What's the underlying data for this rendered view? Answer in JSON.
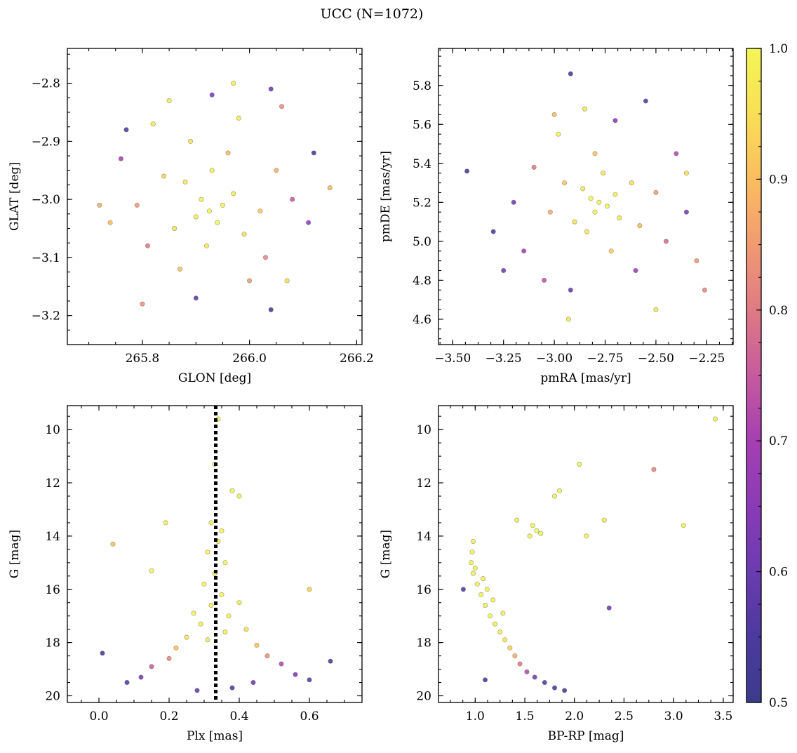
{
  "figure": {
    "title": "UCC (N=1072)",
    "colormap": "plasma",
    "cmap_colors": [
      "#3b3c8c",
      "#4c3a9e",
      "#6a3bb0",
      "#8a3bb6",
      "#a53fb2",
      "#c65a9e",
      "#df7a84",
      "#f19a72",
      "#fbbd5e",
      "#f9df55",
      "#f3f555"
    ],
    "colorbar": {
      "min": 0.5,
      "max": 1.0,
      "ticks": [
        0.5,
        0.6,
        0.7,
        0.8,
        0.9,
        1.0
      ],
      "tick_labels": [
        "0.5",
        "0.6",
        "0.7",
        "0.8",
        "0.9",
        "1.0"
      ]
    }
  },
  "chart_data": [
    {
      "id": "glon-glat",
      "type": "scatter",
      "xlabel": "GLON [deg]",
      "ylabel": "GLAT [deg]",
      "xlim": [
        265.66,
        266.21
      ],
      "ylim": [
        -3.25,
        -2.74
      ],
      "xticks": [
        265.8,
        266.0,
        266.2
      ],
      "xtick_labels": [
        "265.8",
        "266.0",
        "266.2"
      ],
      "yticks": [
        -2.8,
        -2.9,
        -3.0,
        -3.1,
        -3.2
      ],
      "ytick_labels": [
        "−2.8",
        "−2.9",
        "−3.0",
        "−3.1",
        "−3.2"
      ],
      "y_inverted": false,
      "points": [
        [
          265.925,
          -3.02,
          1.0
        ],
        [
          265.91,
          -3.0,
          1.0
        ],
        [
          265.94,
          -3.04,
          1.0
        ],
        [
          265.9,
          -3.03,
          0.98
        ],
        [
          265.95,
          -3.01,
          1.0
        ],
        [
          265.88,
          -2.97,
          0.97
        ],
        [
          265.97,
          -2.99,
          0.98
        ],
        [
          265.93,
          -2.95,
          0.99
        ],
        [
          265.86,
          -3.05,
          0.96
        ],
        [
          265.99,
          -3.06,
          0.95
        ],
        [
          265.92,
          -3.08,
          0.97
        ],
        [
          265.84,
          -2.96,
          0.93
        ],
        [
          266.02,
          -3.02,
          0.92
        ],
        [
          265.96,
          -2.92,
          0.9
        ],
        [
          265.89,
          -2.9,
          0.96
        ],
        [
          265.79,
          -3.01,
          0.85
        ],
        [
          266.05,
          -2.95,
          0.88
        ],
        [
          265.81,
          -3.08,
          0.8
        ],
        [
          266.03,
          -3.1,
          0.82
        ],
        [
          265.87,
          -3.12,
          0.91
        ],
        [
          265.98,
          -2.86,
          0.98
        ],
        [
          265.76,
          -2.93,
          0.7
        ],
        [
          266.08,
          -3.0,
          0.75
        ],
        [
          265.82,
          -2.87,
          0.97
        ],
        [
          266.0,
          -3.14,
          0.86
        ],
        [
          265.93,
          -2.82,
          0.62
        ],
        [
          266.04,
          -2.81,
          0.6
        ],
        [
          265.74,
          -3.04,
          0.9
        ],
        [
          266.11,
          -3.04,
          0.66
        ],
        [
          265.9,
          -3.17,
          0.58
        ],
        [
          265.8,
          -3.18,
          0.84
        ],
        [
          266.07,
          -3.14,
          0.95
        ],
        [
          265.77,
          -2.88,
          0.55
        ],
        [
          266.12,
          -2.92,
          0.53
        ],
        [
          266.04,
          -3.19,
          0.52
        ],
        [
          265.72,
          -3.01,
          0.88
        ],
        [
          266.15,
          -2.98,
          0.9
        ],
        [
          265.85,
          -2.83,
          0.99
        ],
        [
          265.97,
          -2.8,
          0.99
        ],
        [
          266.06,
          -2.84,
          0.83
        ]
      ]
    },
    {
      "id": "pmra-pmde",
      "type": "scatter",
      "xlabel": "pmRA [mas/yr]",
      "ylabel": "pmDE [mas/yr]",
      "xlim": [
        -3.57,
        -2.12
      ],
      "ylim": [
        4.47,
        5.99
      ],
      "xticks": [
        -3.5,
        -3.25,
        -3.0,
        -2.75,
        -2.5,
        -2.25
      ],
      "xtick_labels": [
        "−3.50",
        "−3.25",
        "−3.00",
        "−2.75",
        "−2.50",
        "−2.25"
      ],
      "yticks": [
        4.6,
        4.8,
        5.0,
        5.2,
        5.4,
        5.6,
        5.8
      ],
      "ytick_labels": [
        "4.6",
        "4.8",
        "5.0",
        "5.2",
        "5.4",
        "5.6",
        "5.8"
      ],
      "y_inverted": false,
      "points": [
        [
          -2.78,
          5.2,
          1.0
        ],
        [
          -2.74,
          5.18,
          1.0
        ],
        [
          -2.82,
          5.22,
          1.0
        ],
        [
          -2.7,
          5.24,
          0.99
        ],
        [
          -2.8,
          5.15,
          1.0
        ],
        [
          -2.86,
          5.27,
          0.98
        ],
        [
          -2.68,
          5.12,
          0.98
        ],
        [
          -2.9,
          5.1,
          0.96
        ],
        [
          -2.62,
          5.3,
          0.95
        ],
        [
          -2.76,
          5.35,
          0.97
        ],
        [
          -2.84,
          5.05,
          0.97
        ],
        [
          -2.95,
          5.3,
          0.92
        ],
        [
          -2.58,
          5.08,
          0.9
        ],
        [
          -3.02,
          5.15,
          0.88
        ],
        [
          -2.5,
          5.25,
          0.86
        ],
        [
          -2.72,
          4.95,
          0.93
        ],
        [
          -2.8,
          5.45,
          0.91
        ],
        [
          -3.1,
          5.38,
          0.8
        ],
        [
          -2.45,
          5.0,
          0.78
        ],
        [
          -3.15,
          4.95,
          0.7
        ],
        [
          -2.4,
          5.45,
          0.72
        ],
        [
          -2.98,
          5.55,
          0.99
        ],
        [
          -2.6,
          4.85,
          0.68
        ],
        [
          -3.2,
          5.2,
          0.6
        ],
        [
          -2.35,
          5.15,
          0.62
        ],
        [
          -2.92,
          4.75,
          0.58
        ],
        [
          -2.7,
          5.62,
          0.64
        ],
        [
          -3.3,
          5.05,
          0.55
        ],
        [
          -2.3,
          4.9,
          0.85
        ],
        [
          -3.43,
          5.36,
          0.52
        ],
        [
          -2.92,
          5.86,
          0.53
        ],
        [
          -2.55,
          5.72,
          0.57
        ],
        [
          -2.26,
          4.75,
          0.82
        ],
        [
          -2.93,
          4.6,
          0.97
        ],
        [
          -3.0,
          5.65,
          0.9
        ],
        [
          -2.5,
          4.65,
          0.98
        ],
        [
          -3.25,
          4.85,
          0.6
        ],
        [
          -2.35,
          5.35,
          0.95
        ],
        [
          -2.85,
          5.68,
          0.98
        ],
        [
          -3.05,
          4.8,
          0.74
        ]
      ]
    },
    {
      "id": "plx-g",
      "type": "scatter",
      "xlabel": "Plx [mas]",
      "ylabel": "G [mag]",
      "xlim": [
        -0.09,
        0.75
      ],
      "ylim": [
        20.25,
        9.1
      ],
      "xticks": [
        0.0,
        0.2,
        0.4,
        0.6
      ],
      "xtick_labels": [
        "0.0",
        "0.2",
        "0.4",
        "0.6"
      ],
      "yticks": [
        10,
        12,
        14,
        16,
        18,
        20
      ],
      "ytick_labels": [
        "10",
        "12",
        "14",
        "16",
        "18",
        "20"
      ],
      "y_inverted": true,
      "vline": 0.333,
      "points": [
        [
          0.34,
          9.6,
          1.0
        ],
        [
          0.33,
          11.3,
          1.0
        ],
        [
          0.4,
          12.5,
          1.0
        ],
        [
          0.38,
          12.3,
          1.0
        ],
        [
          0.32,
          13.5,
          1.0
        ],
        [
          0.35,
          13.8,
          1.0
        ],
        [
          0.34,
          14.2,
          1.0
        ],
        [
          0.31,
          14.6,
          1.0
        ],
        [
          0.36,
          15.0,
          1.0
        ],
        [
          0.33,
          15.4,
          1.0
        ],
        [
          0.3,
          15.8,
          1.0
        ],
        [
          0.35,
          16.2,
          1.0
        ],
        [
          0.32,
          16.6,
          1.0
        ],
        [
          0.37,
          17.0,
          1.0
        ],
        [
          0.29,
          17.3,
          1.0
        ],
        [
          0.36,
          17.6,
          0.99
        ],
        [
          0.31,
          17.9,
          0.98
        ],
        [
          0.27,
          16.9,
          1.0
        ],
        [
          0.4,
          16.5,
          0.99
        ],
        [
          0.25,
          17.8,
          0.97
        ],
        [
          0.42,
          17.5,
          0.96
        ],
        [
          0.22,
          18.2,
          0.9
        ],
        [
          0.45,
          18.1,
          0.92
        ],
        [
          0.2,
          18.6,
          0.82
        ],
        [
          0.48,
          18.5,
          0.84
        ],
        [
          0.15,
          18.9,
          0.75
        ],
        [
          0.52,
          18.8,
          0.72
        ],
        [
          0.12,
          19.3,
          0.62
        ],
        [
          0.56,
          19.2,
          0.63
        ],
        [
          0.08,
          19.5,
          0.55
        ],
        [
          0.6,
          19.4,
          0.56
        ],
        [
          0.04,
          14.3,
          0.9
        ],
        [
          0.19,
          13.5,
          1.0
        ],
        [
          0.6,
          16.0,
          0.93
        ],
        [
          0.15,
          15.3,
          1.0
        ],
        [
          0.28,
          19.8,
          0.58
        ],
        [
          0.38,
          19.7,
          0.55
        ],
        [
          0.66,
          18.7,
          0.54
        ],
        [
          0.01,
          18.4,
          0.53
        ],
        [
          0.44,
          19.5,
          0.6
        ]
      ]
    },
    {
      "id": "bprp-g",
      "type": "scatter",
      "xlabel": "BP-RP [mag]",
      "ylabel": "G [mag]",
      "xlim": [
        0.63,
        3.6
      ],
      "ylim": [
        20.25,
        9.1
      ],
      "xticks": [
        1.0,
        1.5,
        2.0,
        2.5,
        3.0,
        3.5
      ],
      "xtick_labels": [
        "1.0",
        "1.5",
        "2.0",
        "2.5",
        "3.0",
        "3.5"
      ],
      "yticks": [
        10,
        12,
        14,
        16,
        18,
        20
      ],
      "ytick_labels": [
        "10",
        "12",
        "14",
        "16",
        "18",
        "20"
      ],
      "y_inverted": true,
      "points": [
        [
          0.98,
          14.2,
          1.0
        ],
        [
          0.97,
          14.6,
          1.0
        ],
        [
          0.96,
          15.0,
          1.0
        ],
        [
          0.98,
          15.4,
          1.0
        ],
        [
          1.02,
          15.8,
          1.0
        ],
        [
          1.06,
          16.2,
          1.0
        ],
        [
          1.1,
          16.6,
          1.0
        ],
        [
          1.15,
          17.0,
          1.0
        ],
        [
          1.2,
          17.3,
          0.99
        ],
        [
          1.25,
          17.6,
          0.98
        ],
        [
          1.3,
          17.9,
          0.97
        ],
        [
          1.35,
          18.2,
          0.93
        ],
        [
          1.4,
          18.5,
          0.88
        ],
        [
          1.45,
          18.8,
          0.8
        ],
        [
          1.52,
          19.1,
          0.72
        ],
        [
          1.6,
          19.3,
          0.62
        ],
        [
          1.7,
          19.5,
          0.56
        ],
        [
          1.8,
          19.7,
          0.53
        ],
        [
          1.9,
          19.8,
          0.52
        ],
        [
          1.0,
          15.2,
          1.0
        ],
        [
          1.08,
          15.6,
          1.0
        ],
        [
          1.12,
          16.0,
          1.0
        ],
        [
          1.18,
          16.4,
          1.0
        ],
        [
          1.28,
          16.9,
          0.99
        ],
        [
          1.62,
          13.8,
          1.0
        ],
        [
          1.58,
          13.6,
          1.0
        ],
        [
          1.55,
          14.0,
          1.0
        ],
        [
          1.66,
          13.9,
          1.0
        ],
        [
          1.42,
          13.4,
          1.0
        ],
        [
          1.8,
          12.5,
          1.0
        ],
        [
          1.85,
          12.3,
          1.0
        ],
        [
          2.05,
          11.3,
          1.0
        ],
        [
          2.8,
          11.5,
          0.82
        ],
        [
          3.42,
          9.6,
          1.0
        ],
        [
          3.1,
          13.6,
          1.0
        ],
        [
          2.3,
          13.4,
          1.0
        ],
        [
          2.12,
          14.0,
          1.0
        ],
        [
          2.35,
          16.7,
          0.6
        ],
        [
          0.88,
          16.0,
          0.55
        ],
        [
          1.1,
          19.4,
          0.52
        ]
      ]
    }
  ]
}
